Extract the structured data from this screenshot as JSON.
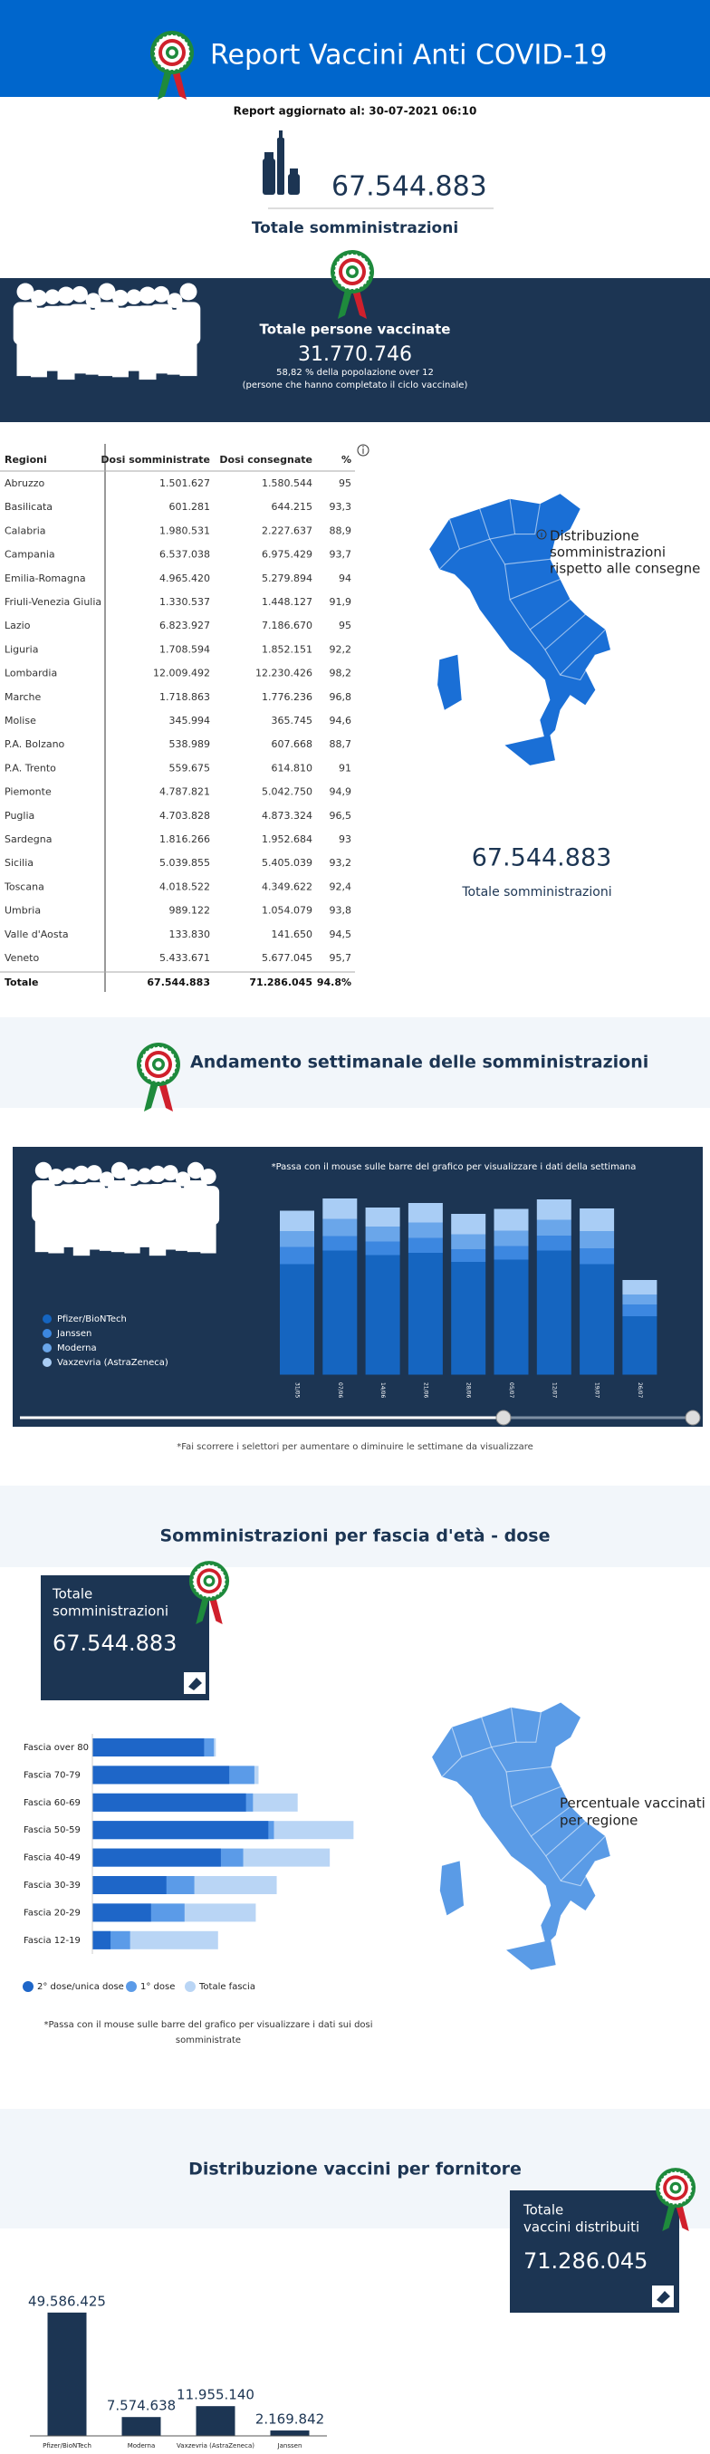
{
  "header": {
    "title": "Report Vaccini Anti COVID-19",
    "updated": "Report aggiornato al: 30-07-2021 06:10"
  },
  "summary": {
    "total": "67.544.883",
    "total_label": "Totale somministrazioni"
  },
  "vaccinated": {
    "title": "Totale persone vaccinate",
    "value": "31.770.746",
    "note": "58,82 % della popolazione over 12",
    "detail": "(persone che hanno completato il ciclo vaccinale)"
  },
  "table": {
    "columns": [
      "Regioni",
      "Dosi somministrate",
      "Dosi consegnate",
      "%"
    ],
    "rows": [
      [
        "Abruzzo",
        "1.501.627",
        "1.580.544",
        "95"
      ],
      [
        "Basilicata",
        "601.281",
        "644.215",
        "93,3"
      ],
      [
        "Calabria",
        "1.980.531",
        "2.227.637",
        "88,9"
      ],
      [
        "Campania",
        "6.537.038",
        "6.975.429",
        "93,7"
      ],
      [
        "Emilia-Romagna",
        "4.965.420",
        "5.279.894",
        "94"
      ],
      [
        "Friuli-Venezia Giulia",
        "1.330.537",
        "1.448.127",
        "91,9"
      ],
      [
        "Lazio",
        "6.823.927",
        "7.186.670",
        "95"
      ],
      [
        "Liguria",
        "1.708.594",
        "1.852.151",
        "92,2"
      ],
      [
        "Lombardia",
        "12.009.492",
        "12.230.426",
        "98,2"
      ],
      [
        "Marche",
        "1.718.863",
        "1.776.236",
        "96,8"
      ],
      [
        "Molise",
        "345.994",
        "365.745",
        "94,6"
      ],
      [
        "P.A. Bolzano",
        "538.989",
        "607.668",
        "88,7"
      ],
      [
        "P.A. Trento",
        "559.675",
        "614.810",
        "91"
      ],
      [
        "Piemonte",
        "4.787.821",
        "5.042.750",
        "94,9"
      ],
      [
        "Puglia",
        "4.703.828",
        "4.873.324",
        "96,5"
      ],
      [
        "Sardegna",
        "1.816.266",
        "1.952.684",
        "93"
      ],
      [
        "Sicilia",
        "5.039.855",
        "5.405.039",
        "93,2"
      ],
      [
        "Toscana",
        "4.018.522",
        "4.349.622",
        "92,4"
      ],
      [
        "Umbria",
        "989.122",
        "1.054.079",
        "93,8"
      ],
      [
        "Valle d'Aosta",
        "133.830",
        "141.650",
        "94,5"
      ],
      [
        "Veneto",
        "5.433.671",
        "5.677.045",
        "95,7"
      ]
    ],
    "total": [
      "Totale",
      "67.544.883",
      "71.286.045",
      "94.8%"
    ]
  },
  "map_consegne": {
    "caption": [
      "Distribuzione",
      "somministrazioni",
      "rispetto alle consegne"
    ],
    "total": "67.544.883",
    "total_label": "Totale somministrazioni"
  },
  "map_fasce": {
    "caption": [
      "Percentuale vaccinati",
      "per regione"
    ]
  },
  "chart_data": [
    {
      "type": "bar",
      "stacked": true,
      "title": "Andamento settimanale delle somministrazioni",
      "note": "*Passa con il mouse sulle barre del grafico per visualizzare i dati della settimana",
      "footnote": "*Fai scorrere i selettori per aumentare o diminuire le settimane da visualizzare",
      "categories": [
        "31/05",
        "07/06",
        "14/06",
        "21/06",
        "28/06",
        "05/07",
        "12/07",
        "19/07",
        "26/07"
      ],
      "ylim": [
        0,
        4000000
      ],
      "series": [
        {
          "name": "Pfizer/BioNTech",
          "color": "#1565c0",
          "values": [
            2450000,
            2750000,
            2650000,
            2700000,
            2500000,
            2550000,
            2750000,
            2450000,
            1300000
          ]
        },
        {
          "name": "Janssen",
          "color": "#3c87e0",
          "values": [
            380000,
            320000,
            300000,
            330000,
            280000,
            300000,
            330000,
            350000,
            260000
          ]
        },
        {
          "name": "Moderna",
          "color": "#6aa6ea",
          "values": [
            350000,
            380000,
            330000,
            340000,
            330000,
            340000,
            350000,
            380000,
            220000
          ]
        },
        {
          "name": "Vaxzevria (AstraZeneca)",
          "color": "#a9cdf5",
          "values": [
            450000,
            450000,
            420000,
            430000,
            450000,
            480000,
            450000,
            500000,
            320000
          ]
        }
      ]
    },
    {
      "type": "bar",
      "orientation": "horizontal",
      "overlap": true,
      "title": "Somministrazioni per fascia d'età - dose",
      "total_box": {
        "label": [
          "Totale",
          "somministrazioni"
        ],
        "value": "67.544.883"
      },
      "note": [
        "*Passa con il mouse sulle barre del grafico per visualizzare i dati sui dosi",
        "somministrate"
      ],
      "categories": [
        "Fascia over 80",
        "Fascia 70-79",
        "Fascia 60-69",
        "Fascia 50-59",
        "Fascia 40-49",
        "Fascia 30-39",
        "Fascia 20-29",
        "Fascia 12-19"
      ],
      "xlim": [
        0,
        9500000
      ],
      "series": [
        {
          "name": "2° dose/unica dose",
          "color": "#1e66c8",
          "values": [
            4000000,
            4900000,
            5500000,
            6300000,
            4600000,
            2650000,
            2100000,
            650000
          ]
        },
        {
          "name": "1° dose",
          "color": "#5b9be8",
          "values": [
            4350000,
            5800000,
            5750000,
            6500000,
            5400000,
            3650000,
            3300000,
            1350000
          ]
        },
        {
          "name": "Totale fascia",
          "color": "#b9d5f5",
          "values": [
            4420000,
            5950000,
            7350000,
            9350000,
            8500000,
            6600000,
            5850000,
            4500000
          ]
        }
      ]
    },
    {
      "type": "bar",
      "title": "Distribuzione vaccini per fornitore",
      "total_box": {
        "label": [
          "Totale",
          "vaccini distribuiti"
        ],
        "value": "71.286.045"
      },
      "categories": [
        "Pfizer/BioNTech",
        "Moderna",
        "Vaxzevria (AstraZeneca)",
        "Janssen"
      ],
      "values": [
        49586425,
        7574638,
        11955140,
        2169842
      ],
      "value_labels": [
        "49.586.425",
        "7.574.638",
        "11.955.140",
        "2.169.842"
      ],
      "ylim": [
        0,
        55000000
      ],
      "color": "#1c3553"
    }
  ]
}
